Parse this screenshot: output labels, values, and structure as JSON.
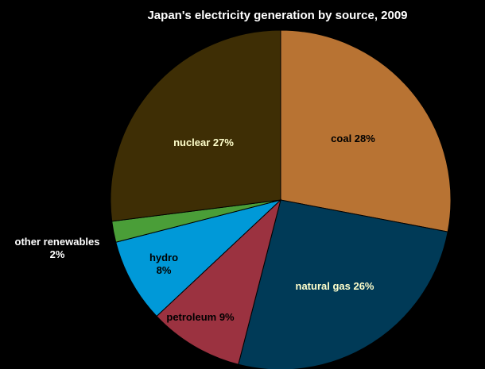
{
  "chart_data": {
    "type": "pie",
    "title": "Japan's electricity generation by source, 2009",
    "start_angle_deg": 0,
    "direction": "clockwise",
    "background_color": "#000000",
    "slices": [
      {
        "label": "coal",
        "value": 28,
        "color": "#B87333",
        "label_text_color": "#000000",
        "label_lines": [
          "coal 28%"
        ]
      },
      {
        "label": "natural gas",
        "value": 26,
        "color": "#003A57",
        "label_text_color": "#FFFFCC",
        "label_lines": [
          "natural gas 26%"
        ]
      },
      {
        "label": "petroleum",
        "value": 9,
        "color": "#9B3240",
        "label_text_color": "#000000",
        "label_lines": [
          "petroleum 9%"
        ]
      },
      {
        "label": "hydro",
        "value": 8,
        "color": "#0099D8",
        "label_text_color": "#000000",
        "label_lines": [
          "hydro",
          "8%"
        ]
      },
      {
        "label": "other renewables",
        "value": 2,
        "color": "#4A9E38",
        "label_text_color": "#FFFFFF",
        "label_lines": [
          "other renewables",
          "2%"
        ],
        "label_outside": true
      },
      {
        "label": "nuclear",
        "value": 27,
        "color": "#3E2E05",
        "label_text_color": "#FFFFCC",
        "label_lines": [
          "nuclear 27%"
        ]
      }
    ]
  }
}
